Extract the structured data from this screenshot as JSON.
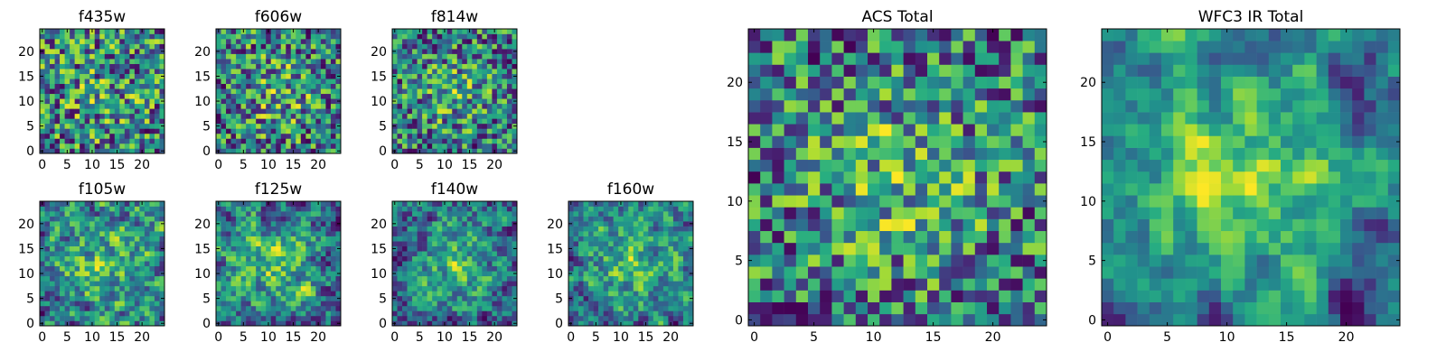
{
  "chart_data": [
    {
      "type": "heatmap",
      "title": "f435w",
      "grid_size": 25,
      "x_ticks": [
        "0",
        "5",
        "10",
        "15",
        "20"
      ],
      "y_ticks": [
        "0",
        "5",
        "10",
        "15",
        "20"
      ],
      "xlim": [
        0,
        24
      ],
      "ylim": [
        0,
        24
      ],
      "colormap": "viridis",
      "seed": 11,
      "smooth": 0,
      "center_boost": 0.12
    },
    {
      "type": "heatmap",
      "title": "f606w",
      "grid_size": 25,
      "x_ticks": [
        "0",
        "5",
        "10",
        "15",
        "20"
      ],
      "y_ticks": [
        "0",
        "5",
        "10",
        "15",
        "20"
      ],
      "xlim": [
        0,
        24
      ],
      "ylim": [
        0,
        24
      ],
      "colormap": "viridis",
      "seed": 23,
      "smooth": 0,
      "center_boost": 0.22
    },
    {
      "type": "heatmap",
      "title": "f814w",
      "grid_size": 25,
      "x_ticks": [
        "0",
        "5",
        "10",
        "15",
        "20"
      ],
      "y_ticks": [
        "0",
        "5",
        "10",
        "15",
        "20"
      ],
      "xlim": [
        0,
        24
      ],
      "ylim": [
        0,
        24
      ],
      "colormap": "viridis",
      "seed": 37,
      "smooth": 0,
      "center_boost": 0.25
    },
    {
      "type": "heatmap",
      "title": "f105w",
      "grid_size": 25,
      "x_ticks": [
        "0",
        "5",
        "10",
        "15",
        "20"
      ],
      "y_ticks": [
        "0",
        "5",
        "10",
        "15",
        "20"
      ],
      "xlim": [
        0,
        24
      ],
      "ylim": [
        0,
        24
      ],
      "colormap": "viridis",
      "seed": 41,
      "smooth": 1,
      "center_boost": 0.25
    },
    {
      "type": "heatmap",
      "title": "f125w",
      "grid_size": 25,
      "x_ticks": [
        "0",
        "5",
        "10",
        "15",
        "20"
      ],
      "y_ticks": [
        "0",
        "5",
        "10",
        "15",
        "20"
      ],
      "xlim": [
        0,
        24
      ],
      "ylim": [
        0,
        24
      ],
      "colormap": "viridis",
      "seed": 53,
      "smooth": 1,
      "center_boost": 0.25
    },
    {
      "type": "heatmap",
      "title": "f140w",
      "grid_size": 25,
      "x_ticks": [
        "0",
        "5",
        "10",
        "15",
        "20"
      ],
      "y_ticks": [
        "0",
        "5",
        "10",
        "15",
        "20"
      ],
      "xlim": [
        0,
        24
      ],
      "ylim": [
        0,
        24
      ],
      "colormap": "viridis",
      "seed": 67,
      "smooth": 1,
      "center_boost": 0.3
    },
    {
      "type": "heatmap",
      "title": "f160w",
      "grid_size": 25,
      "x_ticks": [
        "0",
        "5",
        "10",
        "15",
        "20"
      ],
      "y_ticks": [
        "0",
        "5",
        "10",
        "15",
        "20"
      ],
      "xlim": [
        0,
        24
      ],
      "ylim": [
        0,
        24
      ],
      "colormap": "viridis",
      "seed": 79,
      "smooth": 1,
      "center_boost": 0.3
    },
    {
      "type": "heatmap",
      "title": "ACS Total",
      "grid_size": 25,
      "x_ticks": [
        "0",
        "5",
        "10",
        "15",
        "20"
      ],
      "y_ticks": [
        "0",
        "5",
        "10",
        "15",
        "20"
      ],
      "xlim": [
        0,
        24
      ],
      "ylim": [
        0,
        24
      ],
      "colormap": "viridis",
      "seed": 97,
      "smooth": 0,
      "center_boost": 0.28
    },
    {
      "type": "heatmap",
      "title": "WFC3 IR Total",
      "grid_size": 25,
      "x_ticks": [
        "0",
        "5",
        "10",
        "15",
        "20"
      ],
      "y_ticks": [
        "0",
        "5",
        "10",
        "15",
        "20"
      ],
      "xlim": [
        0,
        24
      ],
      "ylim": [
        0,
        24
      ],
      "colormap": "viridis",
      "seed": 131,
      "smooth": 2,
      "center_boost": 0.35
    }
  ]
}
